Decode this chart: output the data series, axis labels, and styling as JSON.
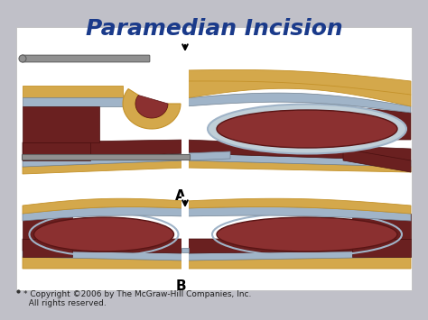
{
  "title": "Paramedian Incision",
  "title_color": "#1a3a8a",
  "title_fontsize": 18,
  "background_color": "#c0c0c8",
  "panel_bg": "#ffffff",
  "copyright": "* Copyright ©2006 by The McGraw-Hill Companies, Inc.\n  All rights reserved.",
  "copyright_fontsize": 6.5,
  "label_A": "A",
  "label_B": "B",
  "colors": {
    "skin": "#d4a84b",
    "skin_dark": "#c4922a",
    "muscle_red": "#8b3030",
    "muscle_dark": "#6a2020",
    "fascia_gray": "#a0b4c8",
    "fascia_light": "#c0cfd8",
    "white": "#ffffff",
    "gray_bg": "#c0c0c8",
    "retractor_gray": "#909090",
    "retractor_dark": "#606060"
  }
}
